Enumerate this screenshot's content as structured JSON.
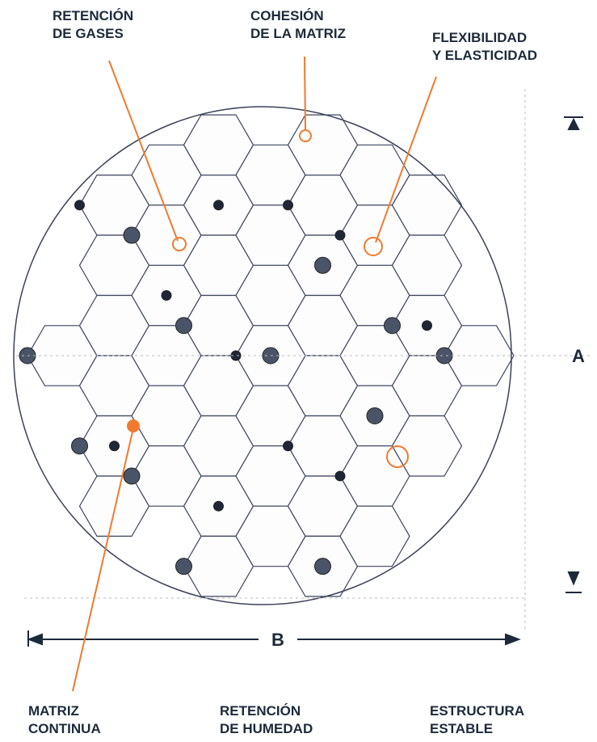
{
  "labels": [
    {
      "lines": [
        "RETENCIÓN",
        "DE GASES"
      ]
    },
    {
      "lines": [
        "COHESIÓN",
        "DE LA MATRIZ"
      ]
    },
    {
      "lines": [
        "FLEXIBILIDAD",
        "Y ELASTICIDAD"
      ]
    },
    {
      "lines": [
        "MATRIZ",
        "CONTINUA"
      ]
    },
    {
      "lines": [
        "RETENCIÓN",
        "DE HUMEDAD"
      ]
    },
    {
      "lines": [
        "ESTRUCTURA",
        "ESTABLE"
      ]
    }
  ],
  "dimensions": {
    "height": "A",
    "width": "B"
  }
}
